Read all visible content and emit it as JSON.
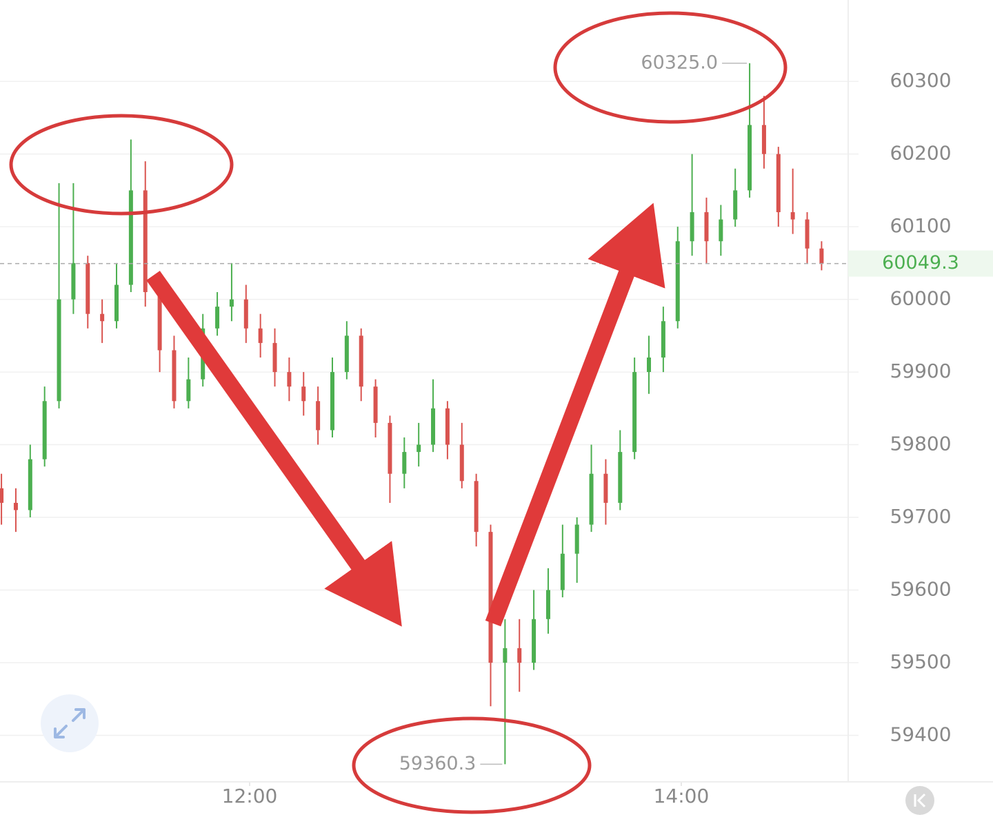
{
  "chart_data": {
    "type": "candlestick",
    "x": [
      651,
      655,
      659,
      663,
      667,
      671,
      675,
      679,
      683,
      687,
      691,
      695,
      699,
      703,
      707,
      711,
      715,
      719,
      723,
      727,
      731,
      735,
      739,
      743,
      747,
      751,
      755,
      759,
      763,
      767,
      771,
      775,
      779,
      783,
      787,
      791,
      795,
      799,
      803,
      807,
      811,
      815,
      819,
      823,
      827,
      831,
      835,
      839,
      843,
      847,
      851,
      855,
      859,
      863,
      867,
      871,
      875,
      879
    ],
    "open": [
      59740,
      59720,
      59710,
      59780,
      59860,
      60000,
      60050,
      59980,
      59970,
      60020,
      60150,
      60010,
      59930,
      59860,
      59890,
      59960,
      59990,
      60000,
      59960,
      59940,
      59900,
      59880,
      59860,
      59820,
      59900,
      59950,
      59880,
      59830,
      59760,
      59790,
      59800,
      59850,
      59800,
      59750,
      59680,
      59500,
      59520,
      59500,
      59560,
      59600,
      59650,
      59690,
      59760,
      59720,
      59790,
      59900,
      59920,
      59970,
      60080,
      60120,
      60080,
      60110,
      60150,
      60240,
      60200,
      60120,
      60110,
      60070
    ],
    "high": [
      59760,
      59740,
      59800,
      59880,
      60160,
      60160,
      60060,
      60000,
      60050,
      60220,
      60190,
      60020,
      59950,
      59920,
      59980,
      60010,
      60050,
      60020,
      59980,
      59960,
      59920,
      59900,
      59880,
      59920,
      59970,
      59960,
      59890,
      59840,
      59810,
      59830,
      59890,
      59860,
      59830,
      59760,
      59690,
      59560,
      59560,
      59600,
      59630,
      59690,
      59700,
      59800,
      59780,
      59820,
      59920,
      59950,
      59990,
      60100,
      60200,
      60140,
      60130,
      60180,
      60325,
      60280,
      60210,
      60180,
      60120,
      60080
    ],
    "low": [
      59690,
      59680,
      59700,
      59770,
      59850,
      59980,
      59960,
      59940,
      59960,
      60010,
      59990,
      59900,
      59850,
      59850,
      59880,
      59950,
      59970,
      59940,
      59920,
      59880,
      59860,
      59840,
      59800,
      59810,
      59890,
      59860,
      59810,
      59720,
      59740,
      59770,
      59790,
      59780,
      59740,
      59660,
      59440,
      59360.3,
      59460,
      59490,
      59540,
      59590,
      59610,
      59680,
      59690,
      59710,
      59780,
      59870,
      59900,
      59960,
      60060,
      60050,
      60060,
      60100,
      60140,
      60180,
      60100,
      60090,
      60050,
      60040
    ],
    "close": [
      59720,
      59710,
      59780,
      59860,
      60000,
      60050,
      59980,
      59970,
      60020,
      60150,
      60010,
      59930,
      59860,
      59890,
      59960,
      59990,
      60000,
      59960,
      59940,
      59900,
      59880,
      59860,
      59820,
      59900,
      59950,
      59880,
      59830,
      59760,
      59790,
      59800,
      59850,
      59800,
      59750,
      59680,
      59500,
      59520,
      59500,
      59560,
      59600,
      59650,
      59690,
      59760,
      59720,
      59790,
      59900,
      59920,
      59970,
      60080,
      60120,
      60080,
      60110,
      60150,
      60240,
      60200,
      60120,
      60110,
      60070,
      60049.3
    ],
    "up_color": "#4caf50",
    "down_color": "#d9534f",
    "xlim": [
      650.6,
      886.4
    ],
    "xticks": [
      {
        "value": 720,
        "label": "12:00"
      },
      {
        "value": 840,
        "label": "14:00"
      }
    ],
    "ylim": [
      59336,
      60412
    ],
    "yticks": [
      59400,
      59500,
      59600,
      59700,
      59800,
      59900,
      60000,
      60100,
      60200,
      60300
    ],
    "grid": true,
    "high_marker": {
      "value": 60325,
      "label": "60325.0"
    },
    "low_marker": {
      "value": 59360.3,
      "label": "59360.3"
    },
    "last_price": {
      "value": 60049.3,
      "label": "60049.3"
    }
  }
}
